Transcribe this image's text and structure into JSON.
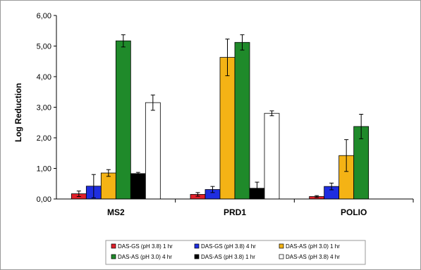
{
  "chart_data": {
    "type": "bar",
    "title": "",
    "xlabel": "",
    "ylabel": "Log Reduction",
    "ylim": [
      0,
      6
    ],
    "yticks": [
      "0,00",
      "1,00",
      "2,00",
      "3,00",
      "4,00",
      "5,00",
      "6,00"
    ],
    "categories": [
      "MS2",
      "PRD1",
      "POLIO"
    ],
    "grid": false,
    "legend_position": "bottom",
    "series": [
      {
        "name": "DAS-GS (pH 3.8) 1 hr",
        "color": "#e0202a",
        "values": [
          0.17,
          0.15,
          0.08
        ],
        "errors": [
          0.09,
          0.06,
          0.03
        ]
      },
      {
        "name": "DAS-GS (pH 3.8) 4 hr",
        "color": "#1f2ee0",
        "values": [
          0.42,
          0.31,
          0.41
        ],
        "errors": [
          0.38,
          0.1,
          0.11
        ]
      },
      {
        "name": "DAS-AS (pH 3.0) 1 hr",
        "color": "#f4b315",
        "values": [
          0.85,
          4.63,
          1.42
        ],
        "errors": [
          0.11,
          0.6,
          0.52
        ]
      },
      {
        "name": "DAS-AS (pH 3.0) 4 hr",
        "color": "#1f8a2a",
        "values": [
          5.17,
          5.12,
          2.37
        ],
        "errors": [
          0.2,
          0.25,
          0.4
        ]
      },
      {
        "name": "DAS-AS (pH 3.8) 1 hr",
        "color": "#000000",
        "values": [
          0.83,
          0.35,
          null
        ],
        "errors": [
          0.04,
          0.2,
          null
        ]
      },
      {
        "name": "DAS-AS (pH 3.8) 4 hr",
        "color": "#ffffff",
        "values": [
          3.15,
          2.8,
          null
        ],
        "errors": [
          0.25,
          0.08,
          null
        ]
      }
    ]
  }
}
